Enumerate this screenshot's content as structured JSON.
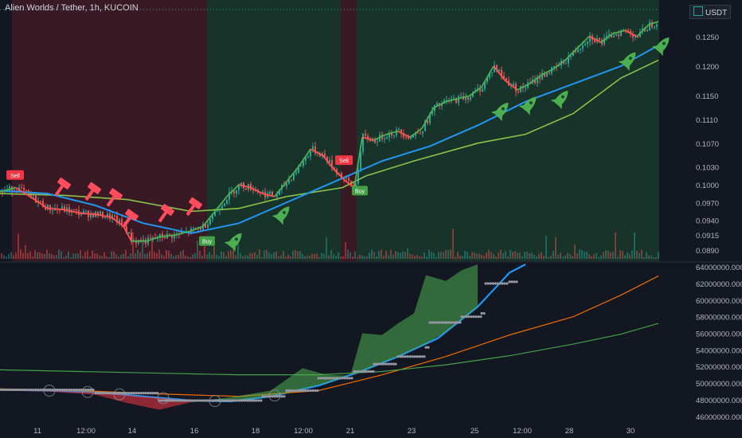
{
  "header": {
    "symbol_title": "Alien Worlds / Tether, 1h, KUCOIN",
    "currency": "USDT"
  },
  "chart_data": [
    {
      "type": "candlestick",
      "title": "Alien Worlds / Tether, 1h, KUCOIN",
      "price_axis_ticks": [
        "0.1250",
        "0.1200",
        "0.1150",
        "0.1110",
        "0.1070",
        "0.1030",
        "0.1000",
        "0.0970",
        "0.0940",
        "0.0915",
        "0.0890"
      ],
      "price_axis_range": [
        0.0875,
        0.129
      ],
      "time_ticks": [
        "11",
        "12:00",
        "14",
        "16",
        "18",
        "12:00",
        "21",
        "23",
        "25",
        "12:00",
        "28",
        "30"
      ],
      "close_path": [
        [
          0,
          0.0988
        ],
        [
          20,
          0.0995
        ],
        [
          40,
          0.0978
        ],
        [
          60,
          0.096
        ],
        [
          80,
          0.0958
        ],
        [
          100,
          0.0952
        ],
        [
          120,
          0.095
        ],
        [
          140,
          0.0945
        ],
        [
          155,
          0.093
        ],
        [
          165,
          0.0905
        ],
        [
          185,
          0.0905
        ],
        [
          200,
          0.0912
        ],
        [
          220,
          0.0915
        ],
        [
          240,
          0.0922
        ],
        [
          255,
          0.093
        ],
        [
          270,
          0.0955
        ],
        [
          285,
          0.098
        ],
        [
          300,
          0.1
        ],
        [
          315,
          0.0995
        ],
        [
          330,
          0.0985
        ],
        [
          345,
          0.098
        ],
        [
          360,
          0.1005
        ],
        [
          375,
          0.103
        ],
        [
          390,
          0.106
        ],
        [
          405,
          0.105
        ],
        [
          420,
          0.1025
        ],
        [
          435,
          0.1005
        ],
        [
          445,
          0.0995
        ],
        [
          455,
          0.108
        ],
        [
          470,
          0.1075
        ],
        [
          485,
          0.1085
        ],
        [
          500,
          0.109
        ],
        [
          515,
          0.108
        ],
        [
          530,
          0.1095
        ],
        [
          545,
          0.113
        ],
        [
          560,
          0.114
        ],
        [
          575,
          0.1145
        ],
        [
          590,
          0.115
        ],
        [
          605,
          0.1165
        ],
        [
          620,
          0.12
        ],
        [
          635,
          0.1175
        ],
        [
          650,
          0.116
        ],
        [
          665,
          0.117
        ],
        [
          680,
          0.1185
        ],
        [
          695,
          0.1195
        ],
        [
          710,
          0.121
        ],
        [
          725,
          0.123
        ],
        [
          740,
          0.125
        ],
        [
          755,
          0.124
        ],
        [
          770,
          0.1255
        ],
        [
          785,
          0.126
        ],
        [
          800,
          0.125
        ],
        [
          815,
          0.127
        ],
        [
          827,
          0.1275
        ]
      ],
      "moving_average_blue": [
        [
          0,
          0.099
        ],
        [
          60,
          0.0985
        ],
        [
          120,
          0.0965
        ],
        [
          180,
          0.0935
        ],
        [
          240,
          0.0918
        ],
        [
          300,
          0.0935
        ],
        [
          360,
          0.097
        ],
        [
          420,
          0.1005
        ],
        [
          480,
          0.104
        ],
        [
          540,
          0.1065
        ],
        [
          600,
          0.11
        ],
        [
          660,
          0.114
        ],
        [
          720,
          0.117
        ],
        [
          780,
          0.12
        ],
        [
          827,
          0.1235
        ]
      ],
      "moving_average_green": [
        [
          0,
          0.0985
        ],
        [
          80,
          0.0982
        ],
        [
          160,
          0.0975
        ],
        [
          240,
          0.0955
        ],
        [
          300,
          0.096
        ],
        [
          360,
          0.098
        ],
        [
          430,
          0.0995
        ],
        [
          460,
          0.1015
        ],
        [
          520,
          0.104
        ],
        [
          600,
          0.107
        ],
        [
          660,
          0.1085
        ],
        [
          720,
          0.112
        ],
        [
          780,
          0.118
        ],
        [
          827,
          0.121
        ]
      ],
      "background_zones": [
        {
          "from": 15,
          "to": 260,
          "color": "#5a1e26"
        },
        {
          "from": 260,
          "to": 428,
          "color": "#1b4a32"
        },
        {
          "from": 428,
          "to": 448,
          "color": "#5a1e26"
        },
        {
          "from": 448,
          "to": 828,
          "color": "#1b4a32"
        }
      ],
      "sell_markers": [
        {
          "x": 15,
          "price": 0.1015,
          "label": "Sell"
        },
        {
          "x": 428,
          "price": 0.104,
          "label": "Sell"
        }
      ],
      "buy_markers": [
        {
          "x": 258,
          "price": 0.0905,
          "label": "Buy"
        },
        {
          "x": 450,
          "price": 0.099,
          "label": "Buy"
        }
      ],
      "hammer_markers": [
        80,
        118,
        145,
        165,
        210,
        245
      ],
      "rocket_markers": [
        {
          "x": 295,
          "price": 0.0905
        },
        {
          "x": 355,
          "price": 0.095
        },
        {
          "x": 630,
          "price": 0.1125
        },
        {
          "x": 665,
          "price": 0.1135
        },
        {
          "x": 705,
          "price": 0.1145
        },
        {
          "x": 790,
          "price": 0.121
        },
        {
          "x": 832,
          "price": 0.1235
        }
      ]
    },
    {
      "type": "line",
      "y_axis_ticks": [
        "64000000.0000",
        "62000000.0000",
        "60000000.0000",
        "58000000.0000",
        "56000000.0000",
        "54000000.0000",
        "52000000.0000",
        "50000000.0000",
        "48000000.0000",
        "46000000.0000"
      ],
      "y_range": [
        45500000,
        64300000
      ],
      "series": [
        {
          "color": "#2196f3",
          "values": [
            [
              0,
              49200000
            ],
            [
              60,
              49100000
            ],
            [
              120,
              48900000
            ],
            [
              180,
              48400000
            ],
            [
              240,
              47900000
            ],
            [
              290,
              47800000
            ],
            [
              340,
              48400000
            ],
            [
              400,
              49700000
            ],
            [
              450,
              51300000
            ],
            [
              500,
              53200000
            ],
            [
              550,
              55400000
            ],
            [
              600,
              59200000
            ],
            [
              640,
              63300000
            ],
            [
              660,
              64300000
            ]
          ]
        },
        {
          "color": "#ef6c00",
          "values": [
            [
              0,
              49300000
            ],
            [
              100,
              49100000
            ],
            [
              200,
              48700000
            ],
            [
              300,
              48400000
            ],
            [
              400,
              49100000
            ],
            [
              480,
              51000000
            ],
            [
              560,
              53200000
            ],
            [
              640,
              55800000
            ],
            [
              720,
              58000000
            ],
            [
              780,
              60600000
            ],
            [
              827,
              62900000
            ]
          ]
        },
        {
          "color": "#43a047",
          "values": [
            [
              0,
              51600000
            ],
            [
              100,
              51400000
            ],
            [
              200,
              51200000
            ],
            [
              300,
              51000000
            ],
            [
              400,
              51000000
            ],
            [
              480,
              51400000
            ],
            [
              560,
              52200000
            ],
            [
              640,
              53300000
            ],
            [
              720,
              54700000
            ],
            [
              780,
              55900000
            ],
            [
              827,
              57200000
            ]
          ]
        }
      ]
    }
  ]
}
